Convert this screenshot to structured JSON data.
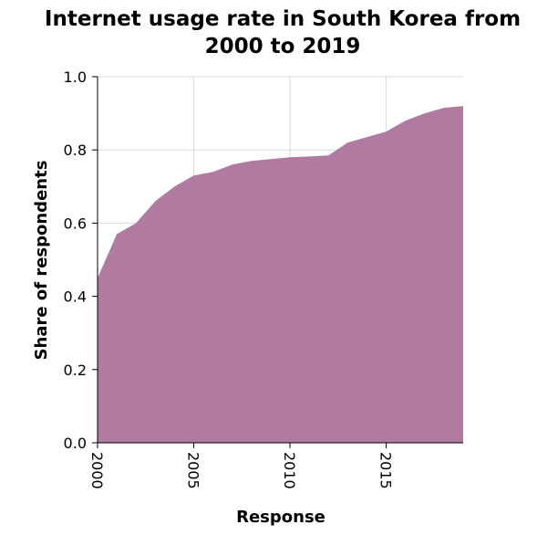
{
  "chart_data": {
    "type": "area",
    "title_lines": [
      "Internet usage rate in South Korea from",
      "2000 to 2019"
    ],
    "xlabel": "Response",
    "ylabel": "Share of respondents",
    "xlim": [
      2000,
      2019
    ],
    "ylim": [
      0,
      1.0
    ],
    "x_ticks": [
      2000,
      2005,
      2010,
      2015
    ],
    "x_tick_labels": [
      "2000",
      "2005",
      "2010",
      "2015"
    ],
    "y_ticks": [
      0,
      0.2,
      0.4,
      0.6,
      0.8,
      1.0
    ],
    "y_tick_labels": [
      "0.0",
      "0.2",
      "0.4",
      "0.6",
      "0.8",
      "1.0"
    ],
    "grid": true,
    "fill_color": "#b07aa1",
    "x": [
      2000,
      2001,
      2002,
      2003,
      2004,
      2005,
      2006,
      2007,
      2008,
      2009,
      2010,
      2011,
      2012,
      2013,
      2014,
      2015,
      2016,
      2017,
      2018,
      2019
    ],
    "values": [
      0.45,
      0.57,
      0.6,
      0.66,
      0.7,
      0.73,
      0.74,
      0.76,
      0.77,
      0.775,
      0.78,
      0.782,
      0.785,
      0.82,
      0.835,
      0.85,
      0.88,
      0.9,
      0.915,
      0.92
    ]
  }
}
